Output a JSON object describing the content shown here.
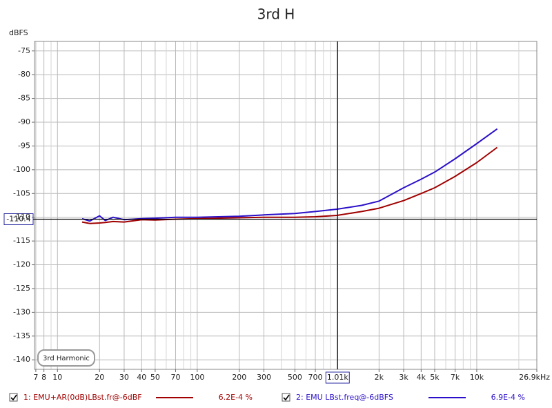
{
  "chart_data": {
    "type": "line",
    "title": "3rd H",
    "y_label": "dBFS",
    "annotation": "3rd Harmonic",
    "x": [
      15,
      17,
      20,
      22,
      25,
      30,
      40,
      50,
      70,
      100,
      200,
      300,
      500,
      700,
      1000,
      1500,
      2000,
      3000,
      4000,
      5000,
      7000,
      10000,
      14000
    ],
    "series": [
      {
        "name": "1: EMU+AR(0dB)LBst.fr@-6dBF",
        "color": "#a00000",
        "legend_value": "6.2E-4 %",
        "values": [
          -111,
          -111.3,
          -111.2,
          -111.1,
          -110.9,
          -111,
          -110.5,
          -110.6,
          -110.4,
          -110.3,
          -110.1,
          -110,
          -110,
          -109.9,
          -109.6,
          -108.8,
          -108.1,
          -106.5,
          -105,
          -103.8,
          -101.4,
          -98.5,
          -95.3
        ]
      },
      {
        "name": "2: EMU LBst.freq@-6dBFS",
        "color": "#2a10c8",
        "legend_value": "6.9E-4 %",
        "values": [
          -110.3,
          -110.8,
          -109.7,
          -110.7,
          -110,
          -110.5,
          -110.3,
          -110.2,
          -110,
          -110,
          -109.8,
          -109.5,
          -109.2,
          -108.8,
          -108.3,
          -107.5,
          -106.6,
          -103.8,
          -102,
          -100.5,
          -97.7,
          -94.5,
          -91.4
        ]
      }
    ],
    "xscale": "log",
    "xlim": [
      6.85,
      26900
    ],
    "ylim": [
      -142,
      -73
    ],
    "xticks": [
      7,
      8,
      10,
      20,
      30,
      40,
      50,
      70,
      100,
      200,
      300,
      500,
      700,
      {
        "value": 2000,
        "label": "2k"
      },
      {
        "value": 3000,
        "label": "3k"
      },
      {
        "value": 4000,
        "label": "4k"
      },
      {
        "value": 5000,
        "label": "5k"
      },
      {
        "value": 7000,
        "label": "7k"
      },
      {
        "value": 10000,
        "label": "10k"
      },
      {
        "value": 26900,
        "label": "26.9kHz"
      }
    ],
    "x_minor_grid": [
      9,
      60,
      80,
      90,
      400,
      600,
      800,
      900,
      1000,
      6000,
      8000,
      9000,
      20000
    ],
    "yticks": [
      -75,
      -80,
      -85,
      -90,
      -95,
      -100,
      -105,
      -110,
      -115,
      -120,
      -125,
      -130,
      -135,
      -140
    ],
    "cursor": {
      "x": {
        "value": 1010,
        "label": "1.01k"
      },
      "y": -110.4
    },
    "grid": true
  }
}
